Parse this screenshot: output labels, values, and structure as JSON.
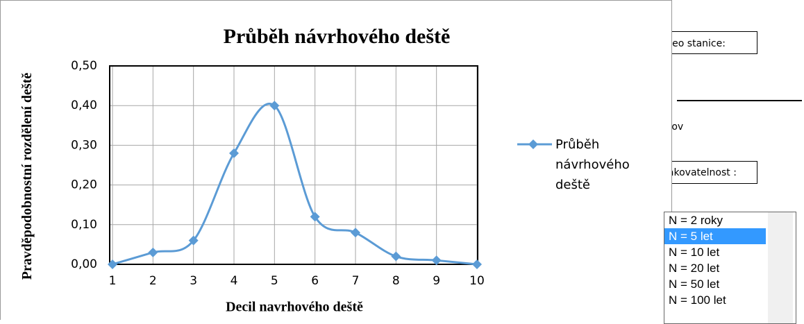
{
  "chart_data": {
    "type": "line",
    "title": "Průběh návrhového deště",
    "xlabel": "Decil navrhového deště",
    "ylabel": "Pravděpodobnostní rozdělení deště",
    "x": [
      1,
      2,
      3,
      4,
      5,
      6,
      7,
      8,
      9,
      10
    ],
    "series": [
      {
        "name": "Průběh návrhového deště",
        "color": "#5b9bd5",
        "values": [
          0,
          0.03,
          0.06,
          0.28,
          0.4,
          0.12,
          0.08,
          0.02,
          0.01,
          0
        ]
      }
    ],
    "xlim": [
      1,
      10
    ],
    "xticks": [
      1,
      2,
      3,
      4,
      5,
      6,
      7,
      8,
      9,
      10
    ],
    "ylim": [
      0,
      0.5
    ],
    "yticks": [
      {
        "value": 0,
        "label": "0,00"
      },
      {
        "value": 0.1,
        "label": "0,10"
      },
      {
        "value": 0.2,
        "label": "0,20"
      },
      {
        "value": 0.3,
        "label": "0,30"
      },
      {
        "value": 0.4,
        "label": "0,40"
      },
      {
        "value": 0.5,
        "label": "0,50"
      }
    ],
    "grid": true,
    "legend": "right"
  },
  "panel": {
    "station_label": "Meteo stanice:",
    "station": "Nížkov",
    "period_label": "Opakovatelnost :",
    "options": [
      "N = 2 roky",
      "N = 5 let",
      "N = 10 let",
      "N = 20 let",
      "N = 50 let",
      "N = 100 let"
    ],
    "selected": 1
  }
}
